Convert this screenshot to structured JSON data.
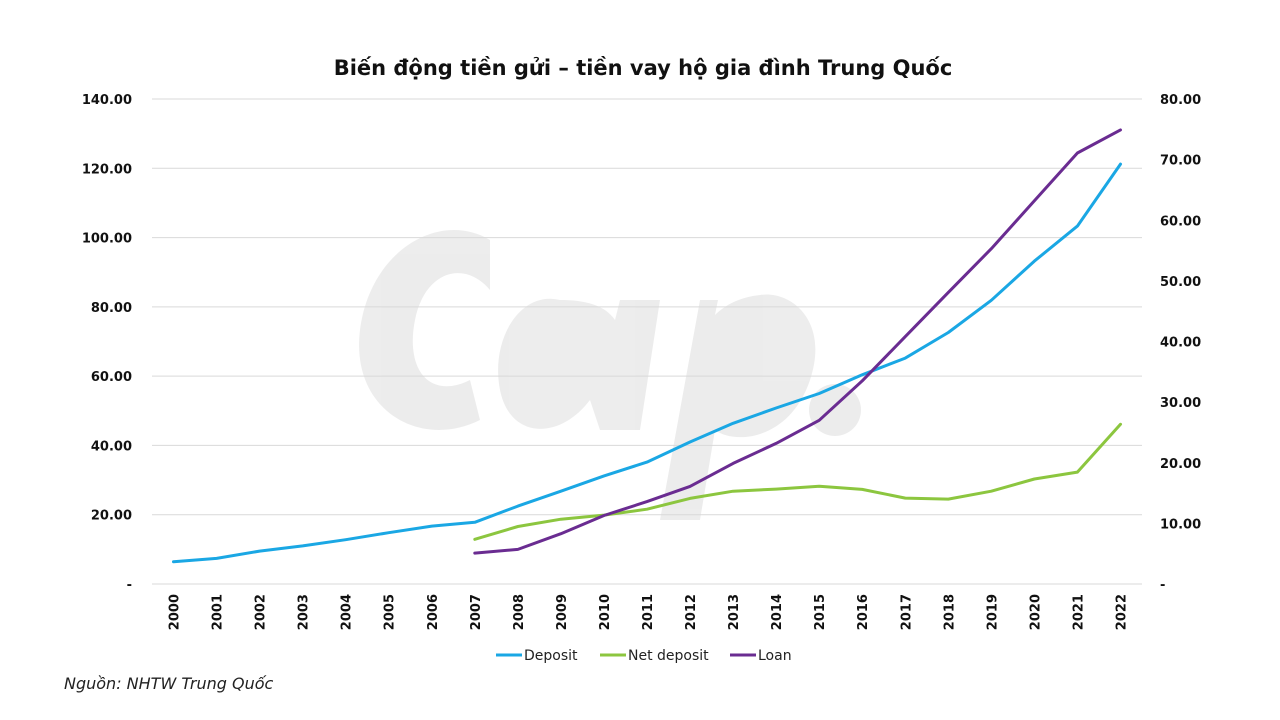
{
  "chart_data": {
    "type": "line",
    "title": "Biến động tiền gửi – tiền vay hộ gia đình Trung Quốc",
    "x": [
      "2000",
      "2001",
      "2002",
      "2003",
      "2004",
      "2005",
      "2006",
      "2007",
      "2008",
      "2009",
      "2010",
      "2011",
      "2012",
      "2013",
      "2014",
      "2015",
      "2016",
      "2017",
      "2018",
      "2019",
      "2020",
      "2021",
      "2022"
    ],
    "y_left": {
      "range": [
        0,
        140
      ],
      "ticks": [
        "-",
        "20.00",
        "40.00",
        "60.00",
        "80.00",
        "100.00",
        "120.00",
        "140.00"
      ]
    },
    "y_right": {
      "range": [
        0,
        80
      ],
      "ticks": [
        "-",
        "10.00",
        "20.00",
        "30.00",
        "40.00",
        "50.00",
        "60.00",
        "70.00",
        "80.00"
      ]
    },
    "grid": true,
    "legend_position": "bottom",
    "series": [
      {
        "name": "Deposit",
        "axis": "left",
        "color": "#1aa7e4",
        "values": [
          6.4,
          7.4,
          9.5,
          11.0,
          12.8,
          14.8,
          16.7,
          17.8,
          22.5,
          26.8,
          31.2,
          35.2,
          41.0,
          46.4,
          50.8,
          55.0,
          60.4,
          65.2,
          72.6,
          81.9,
          93.2,
          103.3,
          121.2
        ]
      },
      {
        "name": "Net deposit",
        "axis": "left",
        "color": "#8cc63f",
        "values": [
          null,
          null,
          null,
          null,
          null,
          null,
          null,
          12.9,
          16.6,
          18.7,
          19.9,
          21.6,
          24.7,
          26.8,
          27.4,
          28.2,
          27.3,
          24.8,
          24.5,
          26.8,
          30.3,
          32.3,
          46.1
        ]
      },
      {
        "name": "Loan",
        "axis": "right",
        "color": "#6a2c91",
        "values": [
          null,
          null,
          null,
          null,
          null,
          null,
          null,
          5.1,
          5.7,
          8.3,
          11.3,
          13.6,
          16.1,
          19.9,
          23.2,
          27.0,
          33.5,
          40.8,
          48.1,
          55.3,
          63.2,
          71.1,
          74.9
        ]
      }
    ]
  },
  "source": "Nguồn: NHTW Trung Quốc",
  "colors": {
    "grid": "#d9d9d9",
    "text": "#111111"
  }
}
